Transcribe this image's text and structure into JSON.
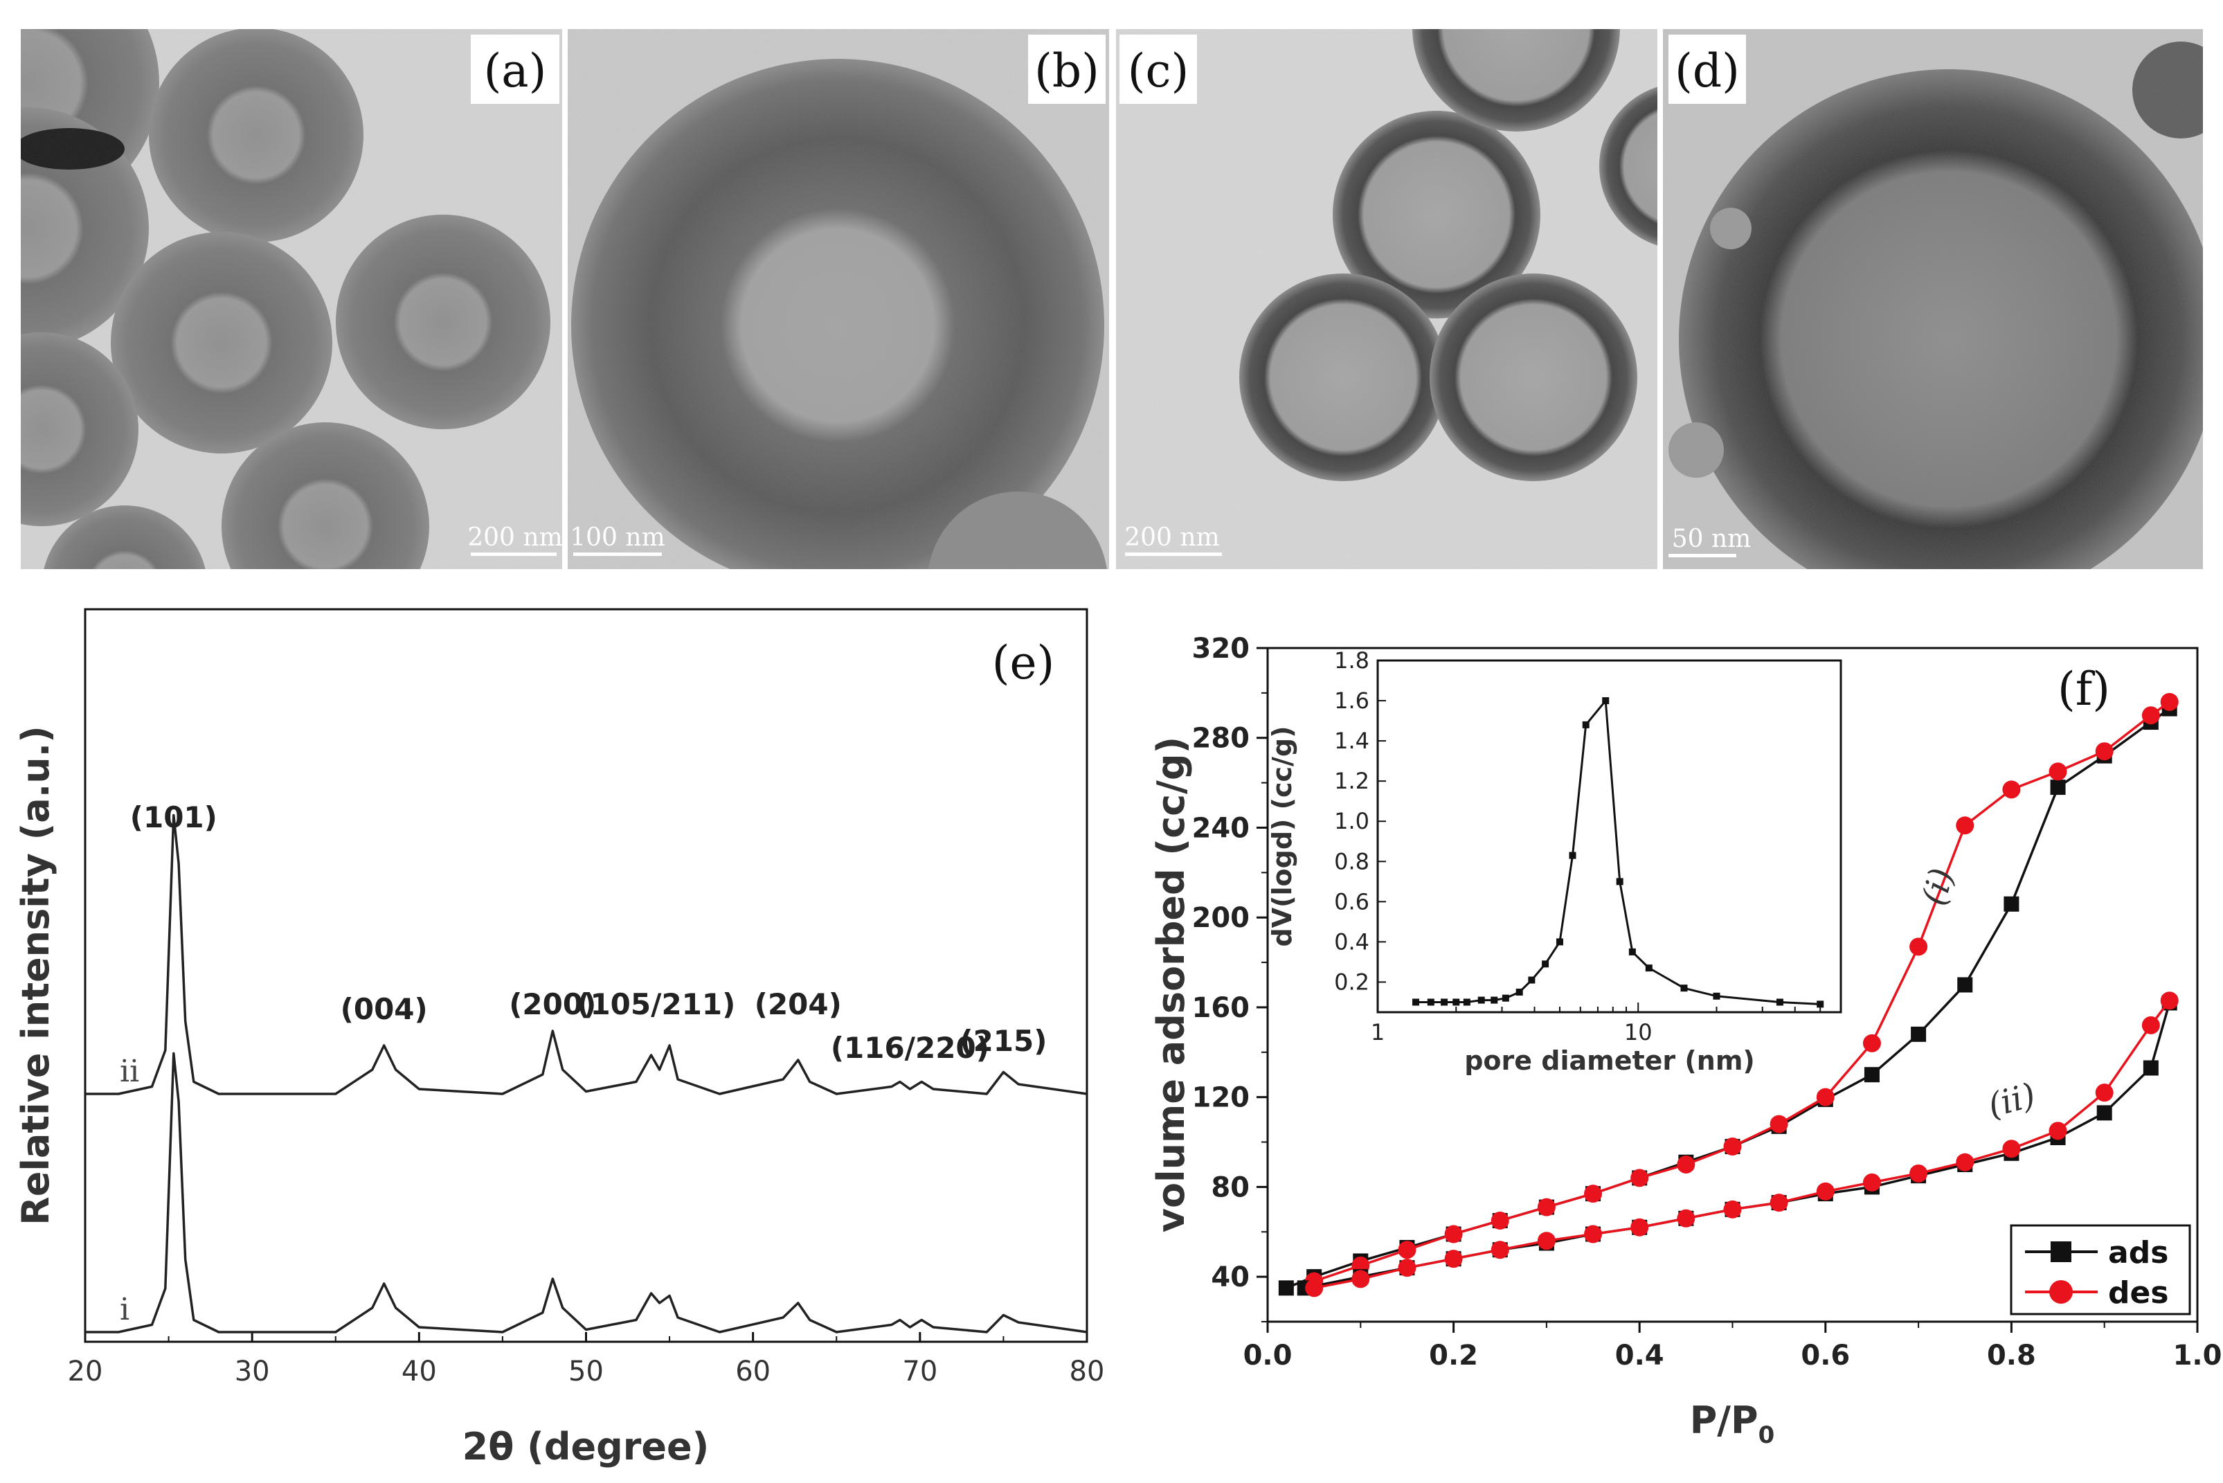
{
  "figure": {
    "panels": [
      {
        "id": "a",
        "label": "(a)",
        "scale_bar": "200 nm"
      },
      {
        "id": "b",
        "label": "(b)",
        "scale_bar": "100 nm"
      },
      {
        "id": "c",
        "label": "(c)",
        "scale_bar": "200 nm"
      },
      {
        "id": "d",
        "label": "(d)",
        "scale_bar": "50 nm"
      }
    ],
    "colors": {
      "black": "#111111",
      "red": "#e8131c"
    }
  },
  "chart_data": [
    {
      "type": "line",
      "panel_label": "(e)",
      "xlabel": "2θ (degree)",
      "ylabel": "Relative intensity (a.u.)",
      "xlim": [
        20,
        80
      ],
      "xticks": [
        20,
        30,
        40,
        50,
        60,
        70,
        80
      ],
      "series": [
        {
          "name": "ii",
          "x": [
            20,
            22,
            24,
            24.8,
            25.3,
            25.6,
            26,
            26.5,
            28,
            30,
            35,
            37.2,
            37.9,
            38.6,
            40,
            45,
            47.4,
            48.0,
            48.6,
            50,
            53,
            53.9,
            54.4,
            55.0,
            55.5,
            58,
            61.8,
            62.7,
            63.4,
            65,
            68.3,
            68.8,
            69.4,
            70.1,
            70.8,
            74,
            75.0,
            75.9,
            80
          ],
          "y": [
            0,
            0,
            0.03,
            0.18,
            1.15,
            0.95,
            0.3,
            0.05,
            0,
            0,
            0,
            0.1,
            0.2,
            0.1,
            0.02,
            0,
            0.08,
            0.26,
            0.1,
            0.01,
            0.05,
            0.16,
            0.1,
            0.2,
            0.06,
            0,
            0.06,
            0.14,
            0.05,
            0,
            0.03,
            0.05,
            0.02,
            0.05,
            0.02,
            0,
            0.09,
            0.04,
            0
          ]
        },
        {
          "name": "i",
          "x": [
            20,
            22,
            24,
            24.8,
            25.3,
            25.6,
            26,
            26.5,
            28,
            30,
            35,
            37.2,
            37.9,
            38.6,
            40,
            45,
            47.4,
            48.0,
            48.6,
            50,
            53,
            53.9,
            54.4,
            55.0,
            55.5,
            58,
            61.8,
            62.7,
            63.4,
            65,
            68.3,
            68.8,
            69.4,
            70.1,
            70.8,
            74,
            75.0,
            75.9,
            80
          ],
          "y": [
            0,
            0,
            0.03,
            0.18,
            1.15,
            0.95,
            0.3,
            0.05,
            0,
            0,
            0,
            0.1,
            0.2,
            0.1,
            0.02,
            0,
            0.08,
            0.22,
            0.1,
            0.01,
            0.05,
            0.16,
            0.12,
            0.15,
            0.06,
            0,
            0.06,
            0.12,
            0.05,
            0,
            0.03,
            0.05,
            0.02,
            0.05,
            0.02,
            0,
            0.07,
            0.04,
            0
          ]
        }
      ],
      "peak_labels": [
        {
          "text": "(101)",
          "x": 25.3
        },
        {
          "text": "(004)",
          "x": 37.9
        },
        {
          "text": "(200)",
          "x": 48.0
        },
        {
          "text": "(105/211)",
          "x": 54.2
        },
        {
          "text": "(204)",
          "x": 62.7
        },
        {
          "text": "(116/220)",
          "x": 69.4
        },
        {
          "text": "(215)",
          "x": 75.0
        }
      ]
    },
    {
      "type": "line",
      "panel_label": "(f)",
      "xlabel": "P/P",
      "xlabel_subscript": "0",
      "ylabel": "volume adsorbed (cc/g)",
      "xlim": [
        0,
        1.0
      ],
      "ylim": [
        20,
        320
      ],
      "xticks": [
        0.0,
        0.2,
        0.4,
        0.6,
        0.8,
        1.0
      ],
      "yticks": [
        40,
        80,
        120,
        160,
        200,
        240,
        280,
        320
      ],
      "legend": {
        "position": "bottom-right",
        "entries": [
          {
            "name": "ads",
            "color": "#111111",
            "marker": "square"
          },
          {
            "name": "des",
            "color": "#e8131c",
            "marker": "circle"
          }
        ]
      },
      "curve_labels": [
        "(i)",
        "(ii)"
      ],
      "series": [
        {
          "name": "ads",
          "group": "i",
          "color": "#111111",
          "marker": "square",
          "x": [
            0.02,
            0.05,
            0.1,
            0.15,
            0.2,
            0.25,
            0.3,
            0.35,
            0.4,
            0.45,
            0.5,
            0.55,
            0.6,
            0.65,
            0.7,
            0.75,
            0.8,
            0.85,
            0.9,
            0.95,
            0.97
          ],
          "y": [
            35,
            40,
            47,
            53,
            59,
            65,
            71,
            77,
            84,
            91,
            98,
            107,
            119,
            130,
            148,
            170,
            206,
            258,
            272,
            287,
            293
          ]
        },
        {
          "name": "des",
          "group": "i",
          "color": "#e8131c",
          "marker": "circle",
          "x": [
            0.05,
            0.1,
            0.15,
            0.2,
            0.25,
            0.3,
            0.35,
            0.4,
            0.45,
            0.5,
            0.55,
            0.6,
            0.65,
            0.7,
            0.75,
            0.8,
            0.85,
            0.9,
            0.95,
            0.97
          ],
          "y": [
            38,
            45,
            52,
            59,
            65,
            71,
            77,
            84,
            90,
            98,
            108,
            120,
            144,
            187,
            241,
            257,
            265,
            274,
            290,
            296
          ]
        },
        {
          "name": "ads",
          "group": "ii",
          "color": "#111111",
          "marker": "square",
          "x": [
            0.04,
            0.1,
            0.15,
            0.2,
            0.25,
            0.3,
            0.35,
            0.4,
            0.45,
            0.5,
            0.55,
            0.6,
            0.65,
            0.7,
            0.75,
            0.8,
            0.85,
            0.9,
            0.95,
            0.97
          ],
          "y": [
            35,
            40,
            44,
            48,
            52,
            55,
            59,
            62,
            66,
            70,
            73,
            77,
            80,
            85,
            90,
            95,
            102,
            113,
            133,
            162
          ]
        },
        {
          "name": "des",
          "group": "ii",
          "color": "#e8131c",
          "marker": "circle",
          "x": [
            0.05,
            0.1,
            0.15,
            0.2,
            0.25,
            0.3,
            0.35,
            0.4,
            0.45,
            0.5,
            0.55,
            0.6,
            0.65,
            0.7,
            0.75,
            0.8,
            0.85,
            0.9,
            0.95,
            0.97
          ],
          "y": [
            35,
            39,
            44,
            48,
            52,
            56,
            59,
            62,
            66,
            70,
            73,
            78,
            82,
            86,
            91,
            97,
            105,
            122,
            152,
            163
          ]
        }
      ],
      "inset": {
        "type": "line",
        "xlabel": "pore diameter (nm)",
        "ylabel": "dV(logd) (cc/g)",
        "xscale": "log",
        "xlim": [
          1,
          60
        ],
        "ylim": [
          0.05,
          1.8
        ],
        "xtick_labels": [
          {
            "value": 1,
            "text": "1"
          },
          {
            "value": 10,
            "text": "10"
          }
        ],
        "yticks": [
          0.2,
          0.4,
          0.6,
          0.8,
          1.0,
          1.2,
          1.4,
          1.6,
          1.8
        ],
        "series": [
          {
            "name": "",
            "x": [
              1.4,
              1.6,
              1.8,
              2.0,
              2.2,
              2.5,
              2.8,
              3.1,
              3.5,
              3.9,
              4.4,
              5.0,
              5.6,
              6.3,
              7.5,
              8.5,
              9.5,
              11,
              15,
              20,
              35,
              50
            ],
            "y": [
              0.1,
              0.1,
              0.1,
              0.1,
              0.1,
              0.11,
              0.11,
              0.12,
              0.15,
              0.21,
              0.29,
              0.4,
              0.83,
              1.48,
              1.6,
              0.7,
              0.35,
              0.27,
              0.17,
              0.13,
              0.1,
              0.09
            ]
          }
        ]
      }
    }
  ]
}
